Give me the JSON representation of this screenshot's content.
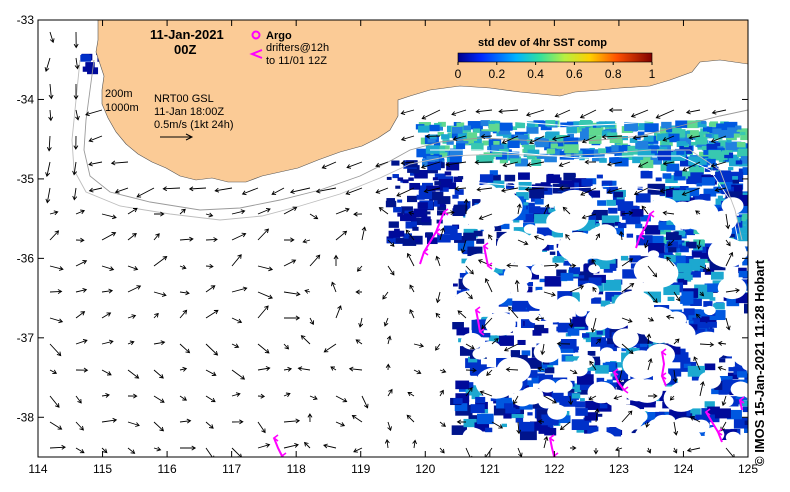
{
  "title": {
    "date": "11-Jan-2021",
    "hour": "00Z"
  },
  "legend": {
    "argo_label": "Argo",
    "drifters_line1": "drifters@12h",
    "drifters_line2": "to 11/01 12Z",
    "isobath_200": "200m",
    "isobath_1000": "1000m",
    "product": "NRT00 GSL",
    "product_time": "11-Jan 18:00Z",
    "scale_label": "0.5m/s (1kt 24h)"
  },
  "colorbar": {
    "title": "std dev of 4hr SST comp",
    "ticks": [
      "0",
      "0.2",
      "0.4",
      "0.6",
      "0.8",
      "1"
    ],
    "range": [
      0,
      1
    ]
  },
  "axes": {
    "lon_range": [
      114,
      125
    ],
    "lat_range": [
      -38.5,
      -33
    ],
    "lon_ticks": [
      "114",
      "115",
      "116",
      "117",
      "118",
      "119",
      "120",
      "121",
      "122",
      "123",
      "124",
      "125"
    ],
    "lat_ticks": [
      "-33",
      "-34",
      "-35",
      "-36",
      "-37",
      "-38"
    ]
  },
  "credit": "© IMOS 15-Jan-2021 11:28 Hobart",
  "colors": {
    "land": "#fbcb96",
    "sst_low": "#000a9a",
    "sst_mid": "#1ca8d0",
    "sst_high": "#8ee060",
    "argo": "#ff00ff",
    "drifter": "#ff00ff",
    "isobath": "#999999"
  }
}
